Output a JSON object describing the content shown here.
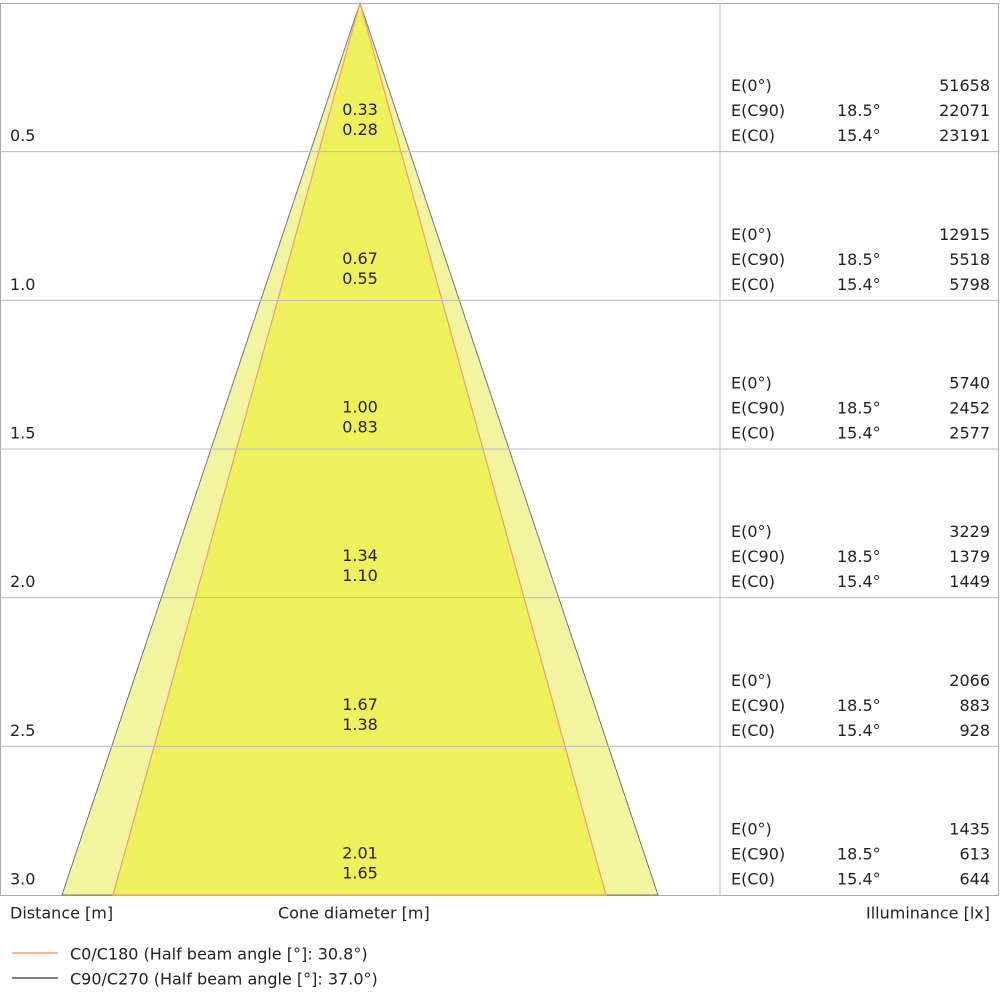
{
  "rows": [
    {
      "distance": "0.5",
      "cone": [
        "0.33",
        "0.28"
      ],
      "illuminance": [
        {
          "label": "E(0°)",
          "angle": null,
          "value": "51658"
        },
        {
          "label": "E(C90)",
          "angle": "18.5°",
          "value": "22071"
        },
        {
          "label": "E(C0)",
          "angle": "15.4°",
          "value": "23191"
        }
      ]
    },
    {
      "distance": "1.0",
      "cone": [
        "0.67",
        "0.55"
      ],
      "illuminance": [
        {
          "label": "E(0°)",
          "angle": null,
          "value": "12915"
        },
        {
          "label": "E(C90)",
          "angle": "18.5°",
          "value": "5518"
        },
        {
          "label": "E(C0)",
          "angle": "15.4°",
          "value": "5798"
        }
      ]
    },
    {
      "distance": "1.5",
      "cone": [
        "1.00",
        "0.83"
      ],
      "illuminance": [
        {
          "label": "E(0°)",
          "angle": null,
          "value": "5740"
        },
        {
          "label": "E(C90)",
          "angle": "18.5°",
          "value": "2452"
        },
        {
          "label": "E(C0)",
          "angle": "15.4°",
          "value": "2577"
        }
      ]
    },
    {
      "distance": "2.0",
      "cone": [
        "1.34",
        "1.10"
      ],
      "illuminance": [
        {
          "label": "E(0°)",
          "angle": null,
          "value": "3229"
        },
        {
          "label": "E(C90)",
          "angle": "18.5°",
          "value": "1379"
        },
        {
          "label": "E(C0)",
          "angle": "15.4°",
          "value": "1449"
        }
      ]
    },
    {
      "distance": "2.5",
      "cone": [
        "1.67",
        "1.38"
      ],
      "illuminance": [
        {
          "label": "E(0°)",
          "angle": null,
          "value": "2066"
        },
        {
          "label": "E(C90)",
          "angle": "18.5°",
          "value": "883"
        },
        {
          "label": "E(C0)",
          "angle": "15.4°",
          "value": "928"
        }
      ]
    },
    {
      "distance": "3.0",
      "cone": [
        "2.01",
        "1.65"
      ],
      "illuminance": [
        {
          "label": "E(0°)",
          "angle": null,
          "value": "1435"
        },
        {
          "label": "E(C90)",
          "angle": "18.5°",
          "value": "613"
        },
        {
          "label": "E(C0)",
          "angle": "15.4°",
          "value": "644"
        }
      ]
    }
  ],
  "footer": {
    "distance": "Distance [m]",
    "cone": "Cone diameter [m]",
    "illuminance": "Illuminance [lx]"
  },
  "legend": [
    "C0/C180 (Half beam angle [°]: 30.8°)",
    "C90/C270 (Half beam angle [°]: 37.0°)"
  ]
}
